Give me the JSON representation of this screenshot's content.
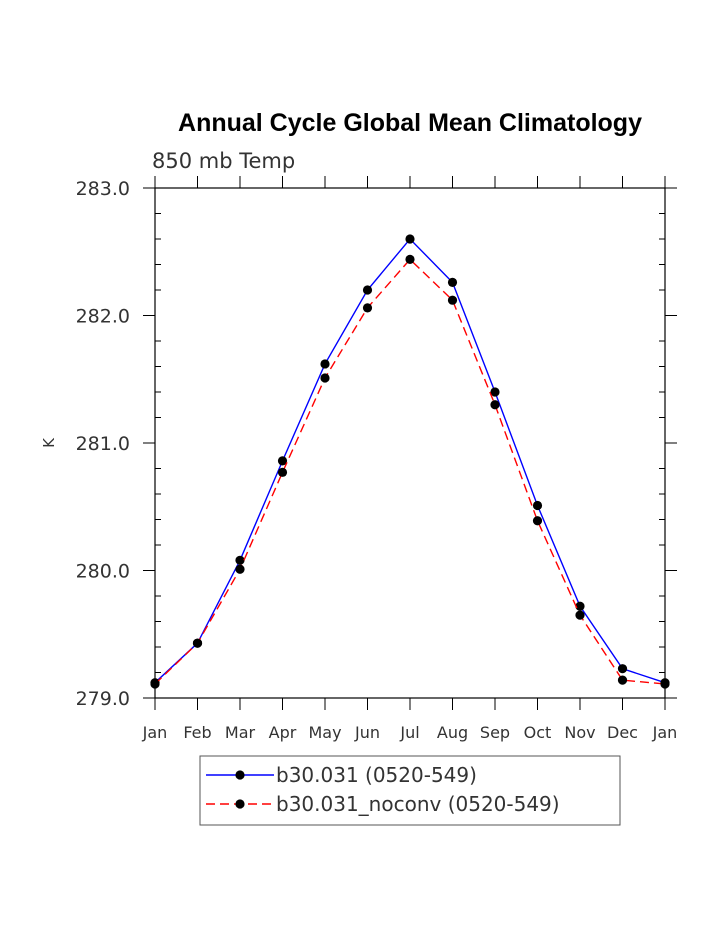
{
  "chart_data": {
    "type": "line",
    "title": "Annual Cycle Global Mean Climatology",
    "subtitle": "850 mb Temp",
    "xlabel": "",
    "ylabel": "K",
    "categories": [
      "Jan",
      "Feb",
      "Mar",
      "Apr",
      "May",
      "Jun",
      "Jul",
      "Aug",
      "Sep",
      "Oct",
      "Nov",
      "Dec",
      "Jan"
    ],
    "ylim": [
      279.0,
      283.0
    ],
    "yticks": [
      "279.0",
      "280.0",
      "281.0",
      "282.0",
      "283.0"
    ],
    "yticks_values": [
      279.0,
      280.0,
      281.0,
      282.0,
      283.0
    ],
    "legend_position": "bottom",
    "series": [
      {
        "name": "b30.031 (0520-549)",
        "color": "#0000ff",
        "dash": "solid",
        "values": [
          279.12,
          279.43,
          280.08,
          280.86,
          281.62,
          282.2,
          282.6,
          282.26,
          281.4,
          280.51,
          279.72,
          279.23,
          279.12
        ]
      },
      {
        "name": "b30.031_noconv (0520-549)",
        "color": "#ff0000",
        "dash": "dashed",
        "values": [
          279.11,
          279.43,
          280.01,
          280.77,
          281.51,
          282.06,
          282.44,
          282.12,
          281.3,
          280.39,
          279.65,
          279.14,
          279.11
        ]
      }
    ]
  }
}
